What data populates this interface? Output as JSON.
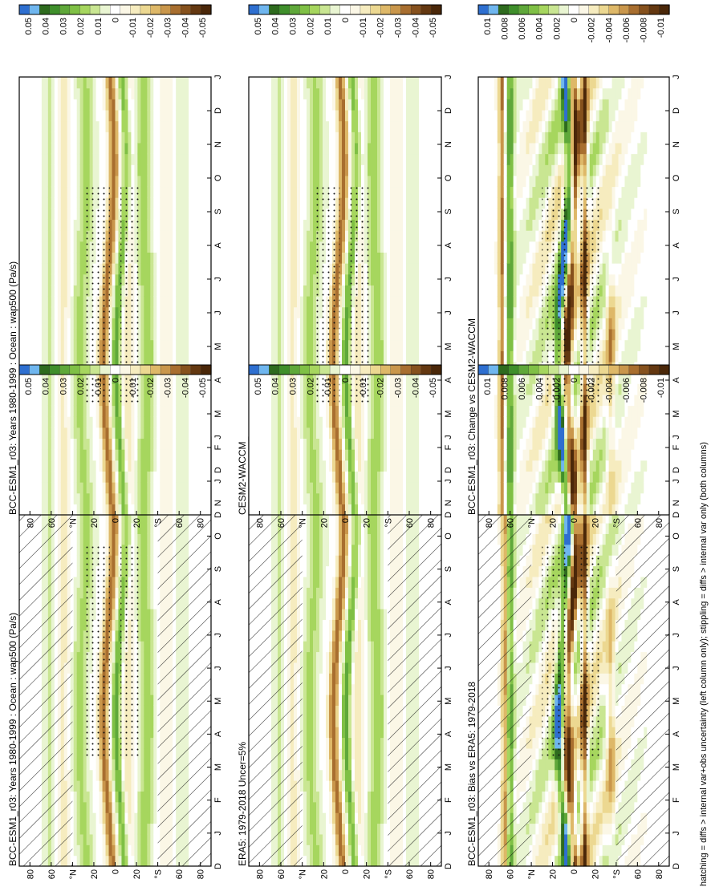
{
  "chart_data": {
    "type": "heatmap",
    "orientation": "rotated 90 degrees counter-clockwise",
    "caption": "hatching = diffs > internal var+obs uncertainty (left column only); stippling = diffs > internal var only (both columns)",
    "months": [
      "D",
      "J",
      "F",
      "M",
      "A",
      "M",
      "J",
      "J",
      "A",
      "S",
      "O",
      "N",
      "D",
      "J"
    ],
    "latitude_ticks": [
      "80",
      "60",
      "°N",
      "20",
      "0",
      "20",
      "°S",
      "60",
      "80"
    ],
    "colorbar_standard": {
      "labels": [
        "0.05",
        "0.04",
        "0.03",
        "0.02",
        "0.01",
        "0",
        "-0.01",
        "-0.02",
        "-0.03",
        "-0.04",
        "-0.05"
      ],
      "colors": [
        "#2e6fd0",
        "#6fb6ef",
        "#2e6b1e",
        "#3f8f2b",
        "#5fa83a",
        "#7fc045",
        "#a6d65e",
        "#c9e692",
        "#e9f5d2",
        "#ffffff",
        "#fbf7e6",
        "#f6ecbf",
        "#ecd891",
        "#deb868",
        "#c9964b",
        "#a86e2f",
        "#86511d",
        "#643811",
        "#4a2709"
      ]
    },
    "colorbar_diff": {
      "labels": [
        "0.01",
        "0.008",
        "0.006",
        "0.004",
        "0.002",
        "0",
        "-0.002",
        "-0.004",
        "-0.006",
        "-0.008",
        "-0.01"
      ],
      "colors": [
        "#2e6fd0",
        "#6fb6ef",
        "#2e6b1e",
        "#3f8f2b",
        "#5fa83a",
        "#7fc045",
        "#a6d65e",
        "#c9e692",
        "#e9f5d2",
        "#ffffff",
        "#fbf7e6",
        "#f6ecbf",
        "#ecd891",
        "#deb868",
        "#c9964b",
        "#a86e2f",
        "#86511d",
        "#643811",
        "#4a2709"
      ]
    },
    "panels": [
      {
        "id": "p1",
        "title": "BCC-ESM1_r03: Years 1980-1999 : Ocean : wap500 (Pa/s)",
        "kind": "clim",
        "hatch": true,
        "stipple": true
      },
      {
        "id": "p2",
        "title": "BCC-ESM1_r03: Years 1980-1999 : Ocean : wap500 (Pa/s)",
        "kind": "clim",
        "hatch": false,
        "stipple": true
      },
      {
        "id": "p3",
        "title": "ERA5: 1979-2018 Uncer=5%",
        "kind": "clim",
        "hatch": true,
        "stipple": false
      },
      {
        "id": "p4",
        "title": "CESM2-WACCM",
        "kind": "clim",
        "hatch": false,
        "stipple": true
      },
      {
        "id": "p5",
        "title": "BCC-ESM1_r03: Bias vs ERA5: 1979-2018",
        "kind": "diff",
        "hatch": true,
        "stipple": true
      },
      {
        "id": "p6",
        "title": "BCC-ESM1_r03: Change vs CESM2-WACCM",
        "kind": "diff",
        "hatch": false,
        "stipple": true
      }
    ]
  }
}
